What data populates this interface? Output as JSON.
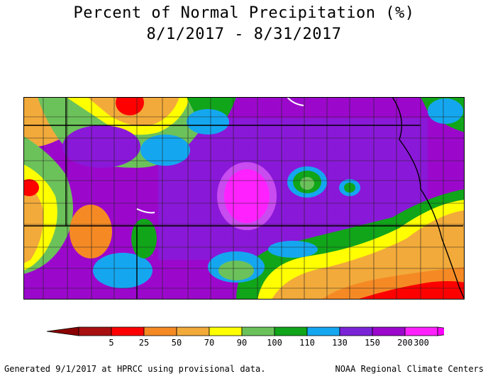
{
  "title": "Percent of Normal Precipitation (%)",
  "date_range": "8/1/2017 - 8/31/2017",
  "legend": {
    "bins": [
      {
        "label": "5",
        "color": "#a81010"
      },
      {
        "label": "25",
        "color": "#ff0000"
      },
      {
        "label": "50",
        "color": "#f58a24"
      },
      {
        "label": "70",
        "color": "#f2aa3a"
      },
      {
        "label": "90",
        "color": "#ffff00"
      },
      {
        "label": "100",
        "color": "#6cc25a"
      },
      {
        "label": "110",
        "color": "#11a51a"
      },
      {
        "label": "130",
        "color": "#14a7f0"
      },
      {
        "label": "150",
        "color": "#7a24d8"
      },
      {
        "label": "200",
        "color": "#9b08cc"
      },
      {
        "label": "300",
        "color": "#ff22ff"
      }
    ],
    "low_end_color": "#8b0000",
    "high_end_color": "#ff00ff"
  },
  "footer": {
    "left": "Generated 9/1/2017 at HPRCC using provisional data.",
    "right": "NOAA Regional Climate Centers"
  }
}
